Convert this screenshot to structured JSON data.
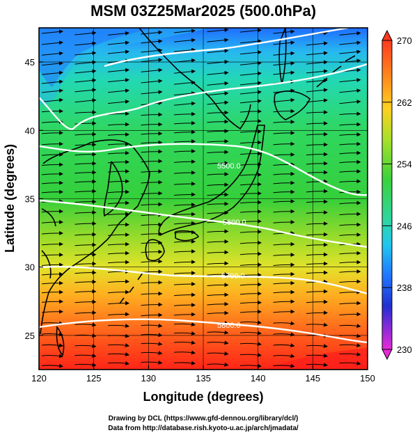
{
  "title": "MSM 03Z25Mar2025 (500.0hPa)",
  "xlabel": "Longitude (degrees)",
  "ylabel": "Latitude  (degrees)",
  "x_ticks": [
    "120",
    "125",
    "130",
    "135",
    "140",
    "145",
    "150"
  ],
  "y_ticks": [
    "25",
    "30",
    "35",
    "40",
    "45"
  ],
  "colorbar": {
    "ticks": [
      "270",
      "262",
      "254",
      "246",
      "238",
      "230"
    ],
    "range": [
      230,
      270
    ]
  },
  "contours": [
    {
      "label": "5500.0",
      "level": 5500
    },
    {
      "label": "5600.0",
      "level": 5600
    },
    {
      "label": "5700.0",
      "level": 5700
    },
    {
      "label": "5800.0",
      "level": 5800
    }
  ],
  "credits": {
    "line1": "Drawing by DCL (https://www.gfd-dennou.org/library/dcl/)",
    "line2": "Data from http://database.rish.kyoto-u.ac.jp/arch/jmadata/"
  },
  "colors": {
    "cold": "#2a7fff",
    "cool": "#22d3b0",
    "mid": "#2fd24b",
    "warm": "#d9e92a",
    "hot": "#ff3b1f"
  },
  "chart_data": {
    "type": "heatmap",
    "title": "MSM 03Z25Mar2025 (500.0hPa)",
    "xlabel": "Longitude (degrees)",
    "ylabel": "Latitude  (degrees)",
    "xlim": [
      120,
      150
    ],
    "ylim": [
      22.5,
      47.5
    ],
    "colorbar_range": [
      230,
      270
    ],
    "contour_levels": [
      5500,
      5600,
      5700,
      5800
    ]
  }
}
